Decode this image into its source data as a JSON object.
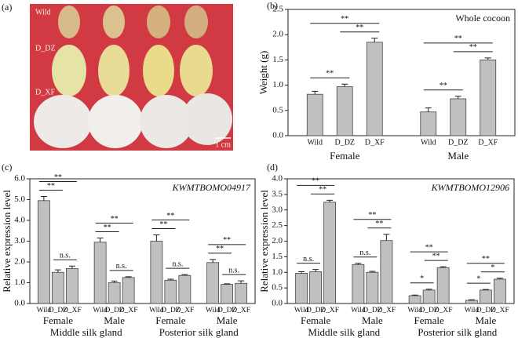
{
  "photo": {
    "panel": "(a)",
    "rows": [
      "Wild",
      "D_DZ",
      "D_XF"
    ],
    "scale_bar": "1 cm"
  },
  "chart_data": [
    {
      "type": "bar",
      "panel": "(b)",
      "title": "Whole cocoon",
      "ylabel": "Weight (g)",
      "color": "#c0c0c0",
      "ylim": [
        0,
        2.5
      ],
      "yticks": [
        {
          "value": 0,
          "label": "0.0"
        },
        0.5,
        {
          "value": 1,
          "label": "1.0"
        },
        1.5,
        {
          "value": 2,
          "label": "2.0"
        },
        2.5
      ],
      "groups": [
        {
          "name": "Female",
          "categories": [
            "Wild",
            "D_DZ",
            "D_XF"
          ],
          "values": [
            0.82,
            0.97,
            1.85
          ],
          "errors": [
            0.06,
            0.05,
            0.08
          ],
          "significance": [
            {
              "label": "**",
              "bars": [
                0,
                1
              ]
            },
            {
              "label": "**",
              "bars": [
                1,
                2
              ]
            },
            {
              "label": "**",
              "bars": [
                0,
                2
              ]
            }
          ]
        },
        {
          "name": "Male",
          "categories": [
            "Wild",
            "D_DZ",
            "D_XF"
          ],
          "values": [
            0.47,
            0.73,
            1.5
          ],
          "errors": [
            0.08,
            0.05,
            0.04
          ],
          "significance": [
            {
              "label": "**",
              "bars": [
                0,
                1
              ]
            },
            {
              "label": "**",
              "bars": [
                1,
                2
              ]
            },
            {
              "label": "**",
              "bars": [
                0,
                2
              ]
            }
          ]
        }
      ]
    },
    {
      "type": "bar",
      "panel": "(c)",
      "title": "KWMTBOMO04917",
      "ylabel": "Relative expression level",
      "color": "#c0c0c0",
      "ylim": [
        0,
        6
      ],
      "yticks": [
        {
          "value": 0,
          "label": "0.0"
        },
        {
          "value": 1,
          "label": "1.0"
        },
        {
          "value": 2,
          "label": "2.0"
        },
        {
          "value": 3,
          "label": "3.0"
        },
        {
          "value": 4,
          "label": "4.0"
        },
        {
          "value": 5,
          "label": "5.0"
        },
        {
          "value": 6,
          "label": "6.0"
        }
      ],
      "tissues": [
        "Middle silk gland",
        "Posterior silk gland"
      ],
      "groups": [
        {
          "name": "Female",
          "categories": [
            "Wild",
            "D_DZ",
            "D_XF"
          ],
          "values": [
            4.95,
            1.5,
            1.68
          ],
          "errors": [
            0.2,
            0.12,
            0.12
          ],
          "significance": [
            {
              "label": "n.s.",
              "bars": [
                1,
                2
              ]
            },
            {
              "label": "**",
              "bars": [
                0,
                1
              ]
            },
            {
              "label": "**",
              "bars": [
                0,
                2
              ]
            }
          ]
        },
        {
          "name": "Male",
          "categories": [
            "Wild",
            "D_DZ",
            "D_XF"
          ],
          "values": [
            2.95,
            1.0,
            1.25
          ],
          "errors": [
            0.2,
            0.08,
            0.04
          ],
          "significance": [
            {
              "label": "n.s.",
              "bars": [
                1,
                2
              ]
            },
            {
              "label": "**",
              "bars": [
                0,
                1
              ]
            },
            {
              "label": "**",
              "bars": [
                0,
                2
              ]
            }
          ]
        },
        {
          "name": "Female",
          "categories": [
            "Wild",
            "D_DZ",
            "D_XF"
          ],
          "values": [
            3.0,
            1.12,
            1.35
          ],
          "errors": [
            0.3,
            0.05,
            0.04
          ],
          "significance": [
            {
              "label": "n.s.",
              "bars": [
                1,
                2
              ]
            },
            {
              "label": "**",
              "bars": [
                0,
                1
              ]
            },
            {
              "label": "**",
              "bars": [
                0,
                2
              ]
            }
          ]
        },
        {
          "name": "Male",
          "categories": [
            "Wild",
            "D_DZ",
            "D_XF"
          ],
          "values": [
            1.97,
            0.92,
            0.97
          ],
          "errors": [
            0.15,
            0.03,
            0.12
          ],
          "significance": [
            {
              "label": "n.s.",
              "bars": [
                1,
                2
              ]
            },
            {
              "label": "**",
              "bars": [
                0,
                1
              ]
            },
            {
              "label": "**",
              "bars": [
                0,
                2
              ]
            }
          ]
        }
      ]
    },
    {
      "type": "bar",
      "panel": "(d)",
      "title": "KWMTBOMO12906",
      "ylabel": "Relative expression level",
      "color": "#c0c0c0",
      "ylim": [
        0,
        4
      ],
      "yticks": [
        {
          "value": 0,
          "label": "0.0"
        },
        0.5,
        {
          "value": 1,
          "label": "1.0"
        },
        1.5,
        {
          "value": 2,
          "label": "2.0"
        },
        2.5,
        {
          "value": 3,
          "label": "3.0"
        },
        3.5,
        {
          "value": 4,
          "label": "4.0"
        }
      ],
      "tissues": [
        "Middle silk gland",
        "Posterior silk gland"
      ],
      "groups": [
        {
          "name": "Female",
          "categories": [
            "Wild",
            "D_DZ",
            "D_XF"
          ],
          "values": [
            0.97,
            1.02,
            3.25
          ],
          "errors": [
            0.05,
            0.07,
            0.06
          ],
          "significance": [
            {
              "label": "n.s.",
              "bars": [
                0,
                1
              ]
            },
            {
              "label": "**",
              "bars": [
                1,
                2
              ]
            },
            {
              "label": "**",
              "bars": [
                0,
                2
              ]
            }
          ]
        },
        {
          "name": "Male",
          "categories": [
            "Wild",
            "D_DZ",
            "D_XF"
          ],
          "values": [
            1.25,
            1.0,
            2.02
          ],
          "errors": [
            0.04,
            0.03,
            0.2
          ],
          "significance": [
            {
              "label": "n.s.",
              "bars": [
                0,
                1
              ]
            },
            {
              "label": "**",
              "bars": [
                1,
                2
              ]
            },
            {
              "label": "**",
              "bars": [
                0,
                2
              ]
            }
          ]
        },
        {
          "name": "Female",
          "categories": [
            "Wild",
            "D_DZ",
            "D_XF"
          ],
          "values": [
            0.25,
            0.43,
            1.15
          ],
          "errors": [
            0.02,
            0.03,
            0.03
          ],
          "significance": [
            {
              "label": "*",
              "bars": [
                0,
                1
              ]
            },
            {
              "label": "**",
              "bars": [
                1,
                2
              ]
            },
            {
              "label": "**",
              "bars": [
                0,
                2
              ]
            }
          ]
        },
        {
          "name": "Male",
          "categories": [
            "Wild",
            "D_DZ",
            "D_XF"
          ],
          "values": [
            0.1,
            0.43,
            0.78
          ],
          "errors": [
            0.02,
            0.02,
            0.03
          ],
          "significance": [
            {
              "label": "*",
              "bars": [
                0,
                1
              ]
            },
            {
              "label": "*",
              "bars": [
                1,
                2
              ]
            },
            {
              "label": "**",
              "bars": [
                0,
                2
              ]
            }
          ]
        }
      ]
    }
  ]
}
